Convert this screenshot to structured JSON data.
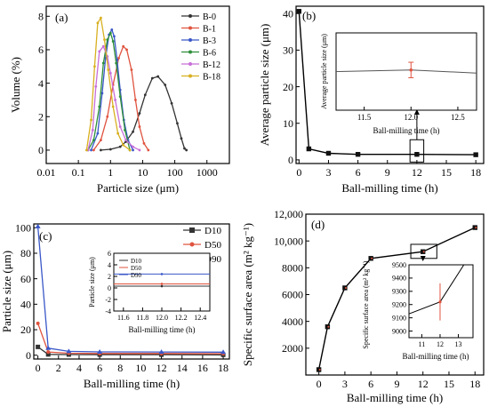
{
  "chart_data": [
    {
      "panel": "(a)",
      "type": "line",
      "xlabel": "Particle size (μm)",
      "ylabel": "Volume (%)",
      "xscale": "log",
      "xlim": [
        0.01,
        5000
      ],
      "ylim": [
        -0.8,
        8.6
      ],
      "xticks": [
        0.01,
        0.1,
        1,
        10,
        100,
        1000
      ],
      "xtick_labels": [
        "0.01",
        "0.1",
        "1",
        "10",
        "100",
        "1000"
      ],
      "yticks": [
        0,
        2,
        4,
        6,
        8
      ],
      "ytick_labels": [
        "0",
        "2",
        "4",
        "6",
        "8"
      ],
      "legend_position": "top-right",
      "series": [
        {
          "name": "B-0",
          "color": "#333333",
          "x": [
            0.5,
            1,
            2,
            3,
            5,
            8,
            12,
            20,
            30,
            50,
            80,
            120,
            160,
            200,
            230
          ],
          "y": [
            0,
            0.05,
            0.2,
            0.5,
            1.1,
            2.2,
            3.3,
            4.3,
            4.4,
            3.9,
            2.8,
            1.6,
            0.7,
            0.1,
            0
          ]
        },
        {
          "name": "B-1",
          "color": "#e0533f",
          "x": [
            0.3,
            0.5,
            0.8,
            1.2,
            1.8,
            2.5,
            3.2,
            4.5,
            6,
            8,
            11,
            15
          ],
          "y": [
            0,
            0.6,
            2.0,
            3.9,
            5.5,
            6.2,
            6.0,
            4.8,
            3.0,
            1.4,
            0.4,
            0
          ]
        },
        {
          "name": "B-3",
          "color": "#3a57c8",
          "x": [
            0.25,
            0.4,
            0.55,
            0.7,
            0.9,
            1.1,
            1.3,
            1.6,
            2,
            2.6,
            3.5,
            5
          ],
          "y": [
            0,
            1.0,
            3.4,
            5.5,
            6.9,
            7.2,
            6.8,
            5.4,
            3.6,
            1.8,
            0.6,
            0
          ]
        },
        {
          "name": "B-6",
          "color": "#2f8f3a",
          "x": [
            0.2,
            0.3,
            0.45,
            0.6,
            0.8,
            1.0,
            1.2,
            1.5,
            2,
            2.8,
            4
          ],
          "y": [
            0,
            0.6,
            2.6,
            5.2,
            6.6,
            7.0,
            6.5,
            5.2,
            3.2,
            1.2,
            0
          ]
        },
        {
          "name": "B-12",
          "color": "#c86fd8",
          "x": [
            0.2,
            0.28,
            0.35,
            0.45,
            0.6,
            0.8,
            1.0,
            1.4,
            2,
            3,
            5,
            8
          ],
          "y": [
            0,
            1.2,
            3.8,
            5.9,
            6.2,
            5.6,
            4.6,
            3.0,
            1.4,
            0.6,
            0.2,
            0
          ]
        },
        {
          "name": "B-18",
          "color": "#d8b020",
          "x": [
            0.18,
            0.25,
            0.32,
            0.4,
            0.5,
            0.65,
            0.85,
            1.2,
            1.7,
            2.5,
            4
          ],
          "y": [
            0,
            1.8,
            5.0,
            7.6,
            7.9,
            6.6,
            4.8,
            2.6,
            1.0,
            0.3,
            0
          ]
        }
      ]
    },
    {
      "panel": "(b)",
      "type": "line",
      "xlabel": "Ball-milling time (h)",
      "ylabel": "Average particle size (μm)",
      "xlim": [
        -0.3,
        18.8
      ],
      "ylim": [
        -1,
        42
      ],
      "xticks": [
        0,
        3,
        6,
        9,
        12,
        15,
        18
      ],
      "yticks": [
        0,
        10,
        20,
        30,
        40
      ],
      "series": [
        {
          "name": "",
          "x": [
            0,
            1,
            3,
            6,
            12,
            18
          ],
          "y": [
            40.6,
            3.0,
            1.8,
            1.5,
            1.5,
            1.4
          ],
          "err": [
            0.5,
            0.2,
            0.1,
            0.1,
            0.1,
            0.1
          ]
        }
      ],
      "inset": {
        "xlabel": "Ball-milling time (h)",
        "ylabel": "Average particle size (μm)",
        "xlim": [
          11.2,
          12.7
        ],
        "ylim": [
          1.0,
          2.0
        ],
        "xticks": [
          11.5,
          12.0,
          12.5
        ],
        "xtick_labels": [
          "11.5",
          "12.0",
          "12.5"
        ],
        "x": [
          11.2,
          12.0,
          12.7
        ],
        "y": [
          1.5,
          1.52,
          1.48
        ],
        "err": [
          0,
          0.1,
          0
        ]
      }
    },
    {
      "panel": "(c)",
      "type": "line",
      "xlabel": "Ball-milling time (h)",
      "ylabel": "Particle size (μm)",
      "xlim": [
        -0.4,
        18.6
      ],
      "ylim": [
        -3,
        103
      ],
      "xticks": [
        0,
        2,
        4,
        6,
        8,
        10,
        12,
        14,
        16,
        18
      ],
      "yticks": [
        0,
        20,
        40,
        60,
        80,
        100
      ],
      "legend_position": "top-right",
      "series": [
        {
          "name": "D10",
          "color": "#333333",
          "x": [
            0,
            1,
            3,
            6,
            12,
            18
          ],
          "y": [
            6.5,
            0.6,
            0.5,
            0.4,
            0.4,
            0.3
          ]
        },
        {
          "name": "D50",
          "color": "#e0533f",
          "x": [
            0,
            1,
            3,
            6,
            12,
            18
          ],
          "y": [
            25,
            2.5,
            1.5,
            1.3,
            1.3,
            1.2
          ]
        },
        {
          "name": "D90",
          "color": "#3a57c8",
          "x": [
            0,
            1,
            3,
            6,
            12,
            18
          ],
          "y": [
            101,
            5.5,
            3.0,
            2.6,
            2.5,
            2.4
          ]
        }
      ],
      "inset": {
        "xlabel": "Ball-milling time (h)",
        "ylabel": "Particle size (μm)",
        "xlim": [
          11.5,
          12.5
        ],
        "ylim": [
          -4,
          6
        ],
        "xticks": [
          11.6,
          11.8,
          12.0,
          12.2,
          12.4
        ],
        "xtick_labels": [
          "11.6",
          "11.8",
          "12.0",
          "12.2",
          "12.4"
        ],
        "yticks": [
          -4,
          -2,
          0,
          2,
          4,
          6
        ],
        "ytick_labels": [
          "-4",
          "-2",
          "0",
          "2",
          "4",
          "6"
        ],
        "legend": [
          "D10",
          "D50",
          "D90"
        ],
        "lines": [
          {
            "name": "D10",
            "color": "#333333",
            "y": 0.3
          },
          {
            "name": "D50",
            "color": "#e0533f",
            "y": 0.7
          },
          {
            "name": "D90",
            "color": "#3a57c8",
            "y": 2.4
          }
        ]
      }
    },
    {
      "panel": "(d)",
      "type": "line",
      "xlabel": "Ball-milling time (h)",
      "ylabel": "Specific surface area (m² kg⁻¹)",
      "xlim": [
        -1.5,
        19
      ],
      "ylim": [
        0,
        12000
      ],
      "xticks": [
        0,
        3,
        6,
        9,
        12,
        15,
        18
      ],
      "yticks": [
        2000,
        4000,
        6000,
        8000,
        10000,
        12000
      ],
      "ytick_labels": [
        "2000",
        "4000",
        "6000",
        "8000",
        "10,000",
        "12,000"
      ],
      "series": [
        {
          "name": "",
          "x": [
            0,
            1,
            3,
            6,
            12,
            18
          ],
          "y": [
            400,
            3600,
            6500,
            8700,
            9200,
            11000
          ]
        }
      ],
      "inset": {
        "xlabel": "Ball-milling time (h)",
        "ylabel": "Specific surface area (m² kg⁻¹)",
        "xlim": [
          10.3,
          13.8
        ],
        "ylim": [
          8950,
          9500
        ],
        "xticks": [
          11,
          12,
          13
        ],
        "xtick_labels": [
          "11",
          "12",
          "13"
        ],
        "yticks": [
          9000,
          9100,
          9200,
          9300,
          9400,
          9500
        ],
        "ytick_labels": [
          "9000",
          "9100",
          "9200",
          "9300",
          "9400",
          "9500"
        ],
        "x": [
          10.3,
          12,
          13.3
        ],
        "y": [
          9130,
          9220,
          9500
        ],
        "err": [
          0,
          140,
          0
        ]
      }
    }
  ]
}
